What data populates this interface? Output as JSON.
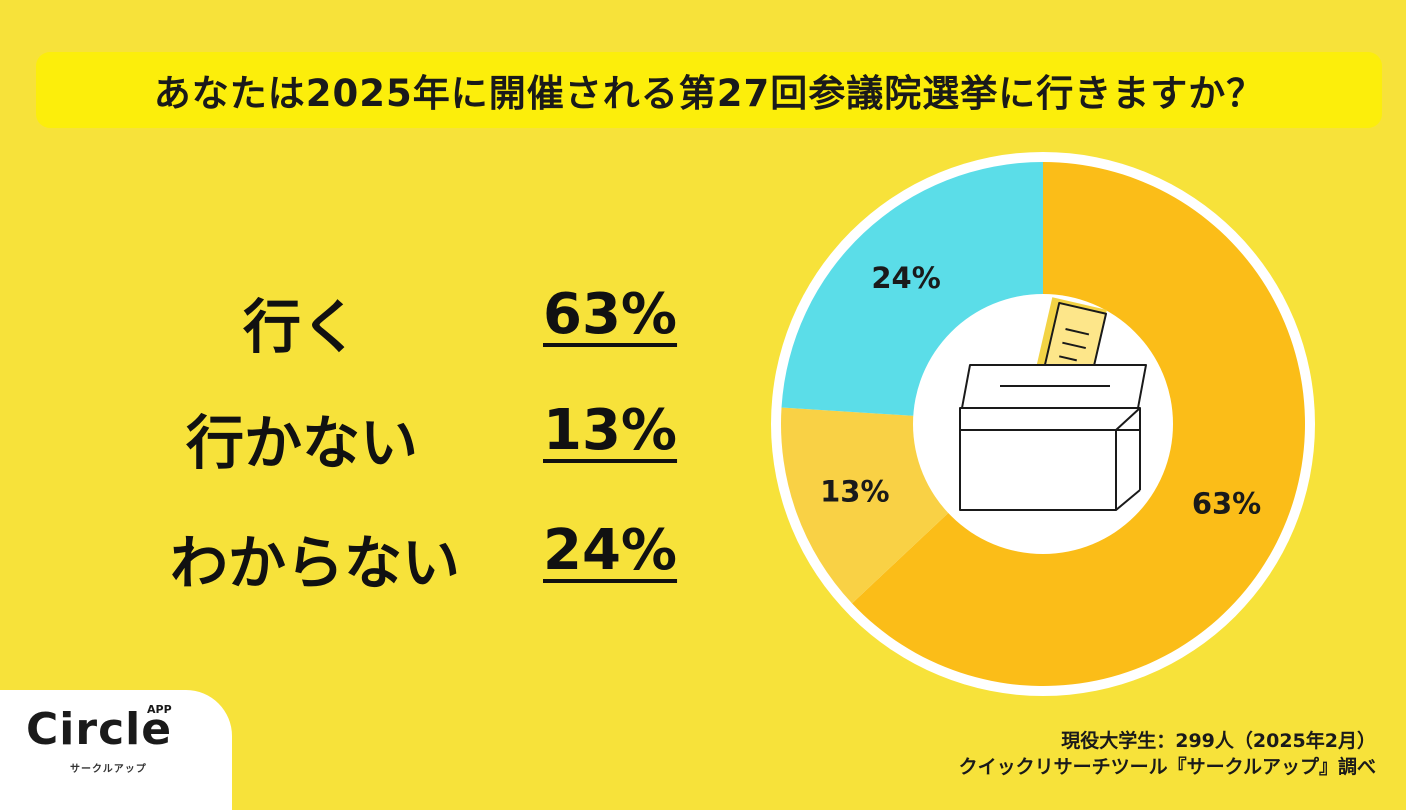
{
  "title": "あなたは2025年に開催される第27回参議院選挙に行きますか？",
  "legend_rows": [
    {
      "label": "行く",
      "percent": "63%"
    },
    {
      "label": "行かない",
      "percent": "13%"
    },
    {
      "label": "わからない",
      "percent": "24%"
    }
  ],
  "chart_data": {
    "type": "pie",
    "categories": [
      "行く",
      "行かない",
      "わからない"
    ],
    "values": [
      63,
      13,
      24
    ],
    "labels": [
      "63%",
      "13%",
      "24%"
    ],
    "colors": [
      "#fbbd18",
      "#f9d145",
      "#5bdde8"
    ],
    "title": ""
  },
  "logo": {
    "name": "Circle",
    "badge": "APP",
    "sub": "サークルアップ"
  },
  "source": {
    "line1": "現役大学生：299人（2025年2月）",
    "line2": "クイックリサーチツール『サークルアップ』調べ"
  },
  "icon": "ballot-box-icon"
}
